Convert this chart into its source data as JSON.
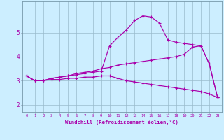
{
  "xlabel": "Windchill (Refroidissement éolien,°C)",
  "background_color": "#cceeff",
  "line_color": "#aa00aa",
  "grid_color": "#99bbcc",
  "x_ticks": [
    0,
    1,
    2,
    3,
    4,
    5,
    6,
    7,
    8,
    9,
    10,
    11,
    12,
    13,
    14,
    15,
    16,
    17,
    18,
    19,
    20,
    21,
    22,
    23
  ],
  "y_ticks": [
    2,
    3,
    4,
    5
  ],
  "xlim": [
    -0.5,
    23.5
  ],
  "ylim": [
    1.7,
    6.3
  ],
  "curve1_x": [
    0,
    1,
    2,
    3,
    4,
    5,
    6,
    7,
    8,
    9,
    10,
    11,
    12,
    13,
    14,
    15,
    16,
    17,
    18,
    19,
    20,
    21,
    22,
    23
  ],
  "curve1_y": [
    3.2,
    3.0,
    3.0,
    3.1,
    3.15,
    3.2,
    3.25,
    3.3,
    3.35,
    3.4,
    4.45,
    4.8,
    5.1,
    5.5,
    5.7,
    5.65,
    5.4,
    4.7,
    4.6,
    4.55,
    4.5,
    4.45,
    3.7,
    2.3
  ],
  "curve2_x": [
    0,
    1,
    2,
    3,
    4,
    5,
    6,
    7,
    8,
    9,
    10,
    11,
    12,
    13,
    14,
    15,
    16,
    17,
    18,
    19,
    20,
    21,
    22,
    23
  ],
  "curve2_y": [
    3.2,
    3.0,
    3.0,
    3.1,
    3.15,
    3.2,
    3.3,
    3.35,
    3.4,
    3.5,
    3.55,
    3.65,
    3.7,
    3.75,
    3.8,
    3.85,
    3.9,
    3.95,
    4.0,
    4.1,
    4.4,
    4.45,
    3.7,
    2.3
  ],
  "curve3_x": [
    0,
    1,
    2,
    3,
    4,
    5,
    6,
    7,
    8,
    9,
    10,
    11,
    12,
    13,
    14,
    15,
    16,
    17,
    18,
    19,
    20,
    21,
    22,
    23
  ],
  "curve3_y": [
    3.2,
    3.0,
    3.0,
    3.05,
    3.05,
    3.1,
    3.1,
    3.15,
    3.15,
    3.2,
    3.2,
    3.1,
    3.0,
    2.95,
    2.9,
    2.85,
    2.8,
    2.75,
    2.7,
    2.65,
    2.6,
    2.55,
    2.45,
    2.3
  ]
}
